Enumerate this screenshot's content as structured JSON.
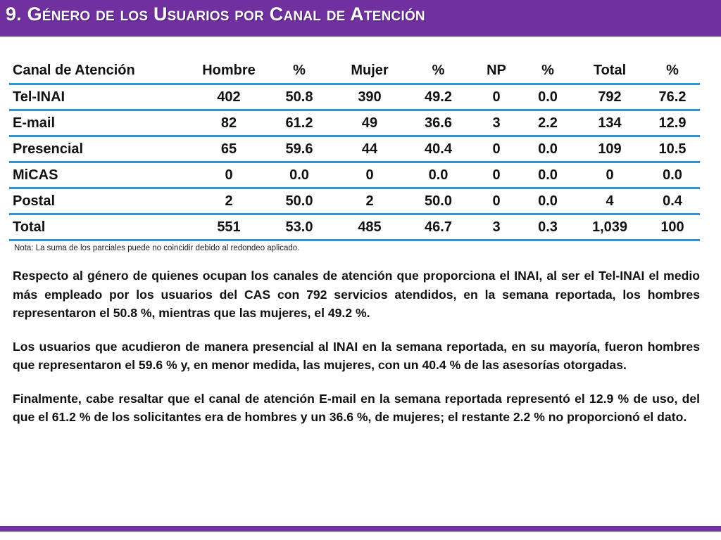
{
  "slide": {
    "title": "9. Género de los Usuarios por Canal de Atención",
    "accent_color": "#7030a0",
    "rule_color": "#2e96d6"
  },
  "table": {
    "headers": [
      "Canal de Atención",
      "Hombre",
      "%",
      "Mujer",
      "%",
      "NP",
      "%",
      "Total",
      "%"
    ],
    "rows": [
      [
        "Tel-INAI",
        "402",
        "50.8",
        "390",
        "49.2",
        "0",
        "0.0",
        "792",
        "76.2"
      ],
      [
        "E-mail",
        "82",
        "61.2",
        "49",
        "36.6",
        "3",
        "2.2",
        "134",
        "12.9"
      ],
      [
        "Presencial",
        "65",
        "59.6",
        "44",
        "40.4",
        "0",
        "0.0",
        "109",
        "10.5"
      ],
      [
        "MiCAS",
        "0",
        "0.0",
        "0",
        "0.0",
        "0",
        "0.0",
        "0",
        "0.0"
      ],
      [
        "Postal",
        "2",
        "50.0",
        "2",
        "50.0",
        "0",
        "0.0",
        "4",
        "0.4"
      ],
      [
        "Total",
        "551",
        "53.0",
        "485",
        "46.7",
        "3",
        "0.3",
        "1,039",
        "100"
      ]
    ]
  },
  "note": "Nota: La suma de los parciales puede no coincidir debido al redondeo aplicado.",
  "paragraphs": [
    "Respecto al género de quienes ocupan los canales de atención que proporciona el INAI, al ser el Tel-INAI el medio más empleado por los usuarios del CAS con 792 servicios atendidos, en la semana reportada, los hombres representaron el 50.8 %, mientras que las mujeres, el 49.2 %.",
    "Los usuarios que acudieron de manera presencial al INAI en la semana reportada, en su mayoría, fueron hombres que representaron el 59.6 % y, en menor medida, las mujeres, con un 40.4 % de las asesorías otorgadas.",
    "Finalmente, cabe resaltar que el canal de atención E-mail en la semana reportada representó el 12.9 % de uso, del que el 61.2 % de los solicitantes era de hombres y un 36.6 %, de mujeres; el restante 2.2 % no proporcionó el dato."
  ]
}
